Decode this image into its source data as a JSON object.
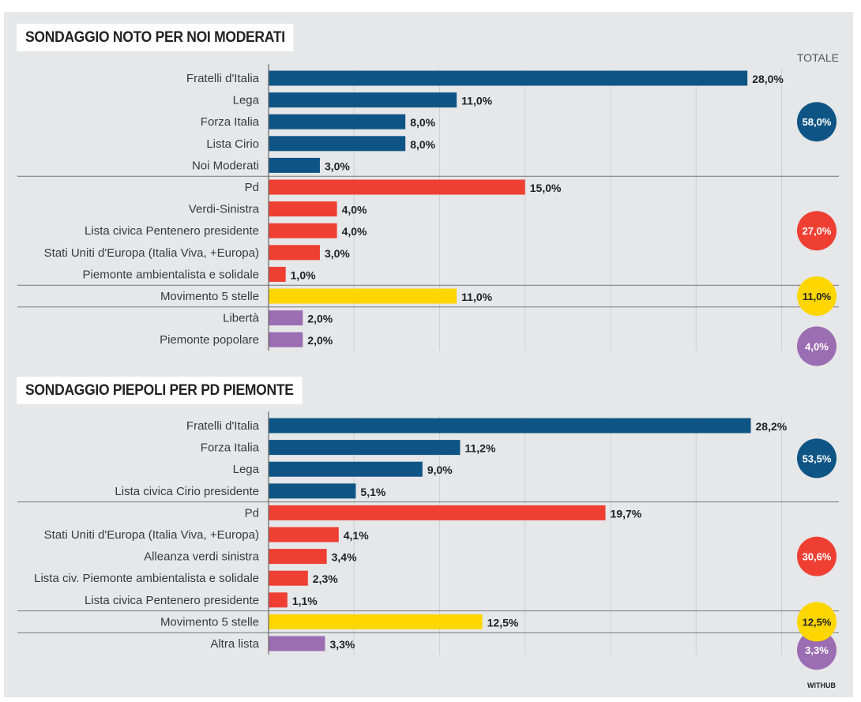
{
  "totale_label": "TOTALE",
  "credit": "WITHUB",
  "colors": {
    "destra": "#0e5585",
    "sinistra": "#ef3f33",
    "m5s": "#fdd600",
    "altri": "#9b6db2",
    "background": "#e6e7e9"
  },
  "chart_data": [
    {
      "type": "bar",
      "orientation": "horizontal",
      "title": "SONDAGGIO NOTO PER NOI MODERATI",
      "xlim": [
        0,
        30
      ],
      "grid": true,
      "gridlines": [
        5,
        10,
        15,
        20,
        25,
        30
      ],
      "groups": [
        {
          "name": "destra",
          "total": 58.0,
          "total_label": "58,0%",
          "categories": [
            "Fratelli d'Italia",
            "Lega",
            "Forza Italia",
            "Lista Cirio",
            "Noi Moderati"
          ],
          "values": [
            28.0,
            11.0,
            8.0,
            8.0,
            3.0
          ],
          "labels": [
            "28,0%",
            "11,0%",
            "8,0%",
            "8,0%",
            "3,0%"
          ]
        },
        {
          "name": "sinistra",
          "total": 27.0,
          "total_label": "27,0%",
          "categories": [
            "Pd",
            "Verdi-Sinistra",
            "Lista civica Pentenero presidente",
            "Stati Uniti d'Europa (Italia Viva, +Europa)",
            "Piemonte ambientalista e solidale"
          ],
          "values": [
            15.0,
            4.0,
            4.0,
            3.0,
            1.0
          ],
          "labels": [
            "15,0%",
            "4,0%",
            "4,0%",
            "3,0%",
            "1,0%"
          ]
        },
        {
          "name": "m5s",
          "total": 11.0,
          "total_label": "11,0%",
          "categories": [
            "Movimento 5 stelle"
          ],
          "values": [
            11.0
          ],
          "labels": [
            "11,0%"
          ]
        },
        {
          "name": "altri",
          "total": 4.0,
          "total_label": "4,0%",
          "categories": [
            "Libertà",
            "Piemonte popolare"
          ],
          "values": [
            2.0,
            2.0
          ],
          "labels": [
            "2,0%",
            "2,0%"
          ]
        }
      ]
    },
    {
      "type": "bar",
      "orientation": "horizontal",
      "title": "SONDAGGIO PIEPOLI PER PD PIEMONTE",
      "xlim": [
        0,
        30
      ],
      "grid": true,
      "gridlines": [
        5,
        10,
        15,
        20,
        25,
        30
      ],
      "groups": [
        {
          "name": "destra",
          "total": 53.5,
          "total_label": "53,5%",
          "categories": [
            "Fratelli d'Italia",
            "Forza Italia",
            "Lega",
            "Lista civica Cirio presidente"
          ],
          "values": [
            28.2,
            11.2,
            9.0,
            5.1
          ],
          "labels": [
            "28,2%",
            "11,2%",
            "9,0%",
            "5,1%"
          ]
        },
        {
          "name": "sinistra",
          "total": 30.6,
          "total_label": "30,6%",
          "categories": [
            "Pd",
            "Stati Uniti d'Europa (Italia Viva, +Europa)",
            "Alleanza verdi sinistra",
            "Lista civ. Piemonte ambientalista e solidale",
            "Lista civica Pentenero presidente"
          ],
          "values": [
            19.7,
            4.1,
            3.4,
            2.3,
            1.1
          ],
          "labels": [
            "19,7%",
            "4,1%",
            "3,4%",
            "2,3%",
            "1,1%"
          ]
        },
        {
          "name": "m5s",
          "total": 12.5,
          "total_label": "12,5%",
          "categories": [
            "Movimento 5 stelle"
          ],
          "values": [
            12.5
          ],
          "labels": [
            "12,5%"
          ]
        },
        {
          "name": "altri",
          "total": 3.3,
          "total_label": "3,3%",
          "categories": [
            "Altra lista"
          ],
          "values": [
            3.3
          ],
          "labels": [
            "3,3%"
          ]
        }
      ]
    }
  ]
}
